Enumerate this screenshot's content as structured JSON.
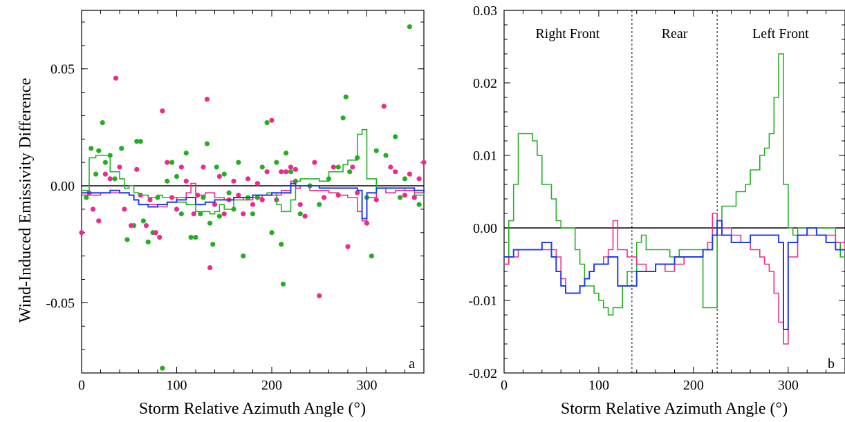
{
  "colors": {
    "green": "#22b022",
    "pink": "#ee2a8a",
    "blue": "#1f3cf0",
    "zero_line": "#000000"
  },
  "chart_data": [
    {
      "panel": "a",
      "type": "scatter",
      "title": "",
      "xlabel": "Storm Relative Azimuth Angle (°)",
      "ylabel": "Wind-Induced Emissivity Difference",
      "xlim": [
        0,
        360
      ],
      "ylim": [
        -0.08,
        0.075
      ],
      "x_ticks": [
        0,
        100,
        200,
        300
      ],
      "y_ticks": [
        0.05,
        0.0,
        -0.05
      ],
      "x_tick_labels": [
        "0",
        "100",
        "200",
        "300"
      ],
      "y_tick_labels": [
        "0.05",
        "0.00",
        "-0.05"
      ],
      "panel_label": "a",
      "series": [
        {
          "color": "green",
          "kind": "points",
          "x": [
            5,
            10,
            15,
            18,
            22,
            25,
            30,
            35,
            42,
            48,
            55,
            58,
            62,
            65,
            70,
            75,
            80,
            85,
            90,
            95,
            100,
            105,
            110,
            115,
            120,
            125,
            128,
            132,
            135,
            138,
            142,
            145,
            150,
            155,
            160,
            165,
            170,
            175,
            180,
            185,
            190,
            195,
            200,
            205,
            210,
            212,
            215,
            220,
            225,
            230,
            240,
            250,
            260,
            270,
            275,
            278,
            282,
            290,
            300,
            305,
            310,
            320,
            330,
            335,
            340,
            345,
            350,
            355
          ],
          "y": [
            -0.005,
            0.016,
            0.005,
            0.015,
            0.027,
            0.01,
            0.013,
            0.003,
            0.016,
            -0.023,
            -0.017,
            0.019,
            0.019,
            -0.015,
            -0.024,
            -0.02,
            -0.005,
            -0.078,
            0.002,
            0.01,
            0.004,
            -0.012,
            0.014,
            -0.022,
            -0.022,
            -0.012,
            -0.005,
            0.018,
            -0.016,
            -0.025,
            0.008,
            -0.013,
            0.005,
            -0.003,
            -0.01,
            0.01,
            -0.03,
            -0.005,
            -0.012,
            -0.005,
            0.008,
            0.027,
            -0.02,
            0.01,
            -0.025,
            -0.042,
            0.014,
            0.006,
            0.002,
            -0.012,
            0.0,
            -0.008,
            0.003,
            0.008,
            0.029,
            0.038,
            0.006,
            0.012,
            -0.005,
            -0.03,
            0.015,
            0.013,
            0.021,
            -0.005,
            0.003,
            0.068,
            -0.005,
            -0.008
          ]
        },
        {
          "color": "pink",
          "kind": "points",
          "x": [
            0,
            8,
            12,
            18,
            25,
            30,
            36,
            40,
            45,
            52,
            58,
            62,
            68,
            72,
            78,
            82,
            85,
            90,
            95,
            100,
            105,
            110,
            118,
            122,
            128,
            132,
            135,
            140,
            145,
            150,
            155,
            160,
            165,
            170,
            175,
            180,
            185,
            190,
            195,
            200,
            205,
            210,
            215,
            220,
            225,
            230,
            235,
            245,
            250,
            255,
            265,
            270,
            280,
            285,
            290,
            300,
            310,
            318,
            325,
            330,
            340,
            345,
            350,
            355,
            360
          ],
          "y": [
            -0.02,
            -0.003,
            -0.01,
            -0.015,
            0.005,
            0.003,
            0.046,
            0.008,
            -0.01,
            -0.017,
            0.007,
            -0.004,
            -0.017,
            -0.006,
            -0.02,
            -0.022,
            0.032,
            0.01,
            -0.005,
            -0.01,
            0.008,
            0.002,
            -0.012,
            -0.004,
            0.008,
            0.037,
            -0.035,
            -0.008,
            0.004,
            -0.012,
            -0.006,
            0.002,
            -0.004,
            -0.012,
            0.003,
            -0.008,
            0.001,
            -0.006,
            0.006,
            0.028,
            -0.006,
            0.006,
            0.006,
            0.008,
            0.007,
            -0.008,
            -0.013,
            0.01,
            -0.047,
            -0.005,
            0.008,
            -0.004,
            -0.026,
            0.008,
            -0.003,
            -0.016,
            -0.006,
            0.034,
            0.008,
            0.006,
            -0.004,
            0.005,
            -0.005,
            0.003,
            0.01
          ]
        },
        {
          "color": "green",
          "kind": "step",
          "x": [
            0,
            8,
            12,
            15,
            20,
            30,
            40,
            45,
            50,
            55,
            60,
            65,
            70,
            75,
            80,
            85,
            95,
            100,
            110,
            120,
            130,
            135,
            140,
            145,
            150,
            160,
            170,
            180,
            190,
            195,
            200,
            205,
            210,
            215,
            220,
            225,
            230,
            240,
            250,
            260,
            270,
            275,
            280,
            285,
            290,
            295,
            300,
            310,
            320,
            330,
            340,
            350,
            360
          ],
          "y": [
            -0.002,
            0.012,
            0.012,
            0.013,
            0.013,
            0.006,
            0.003,
            -0.001,
            0.0,
            -0.003,
            -0.004,
            -0.004,
            -0.005,
            -0.005,
            -0.004,
            -0.005,
            -0.005,
            -0.007,
            -0.008,
            -0.011,
            -0.011,
            -0.012,
            -0.011,
            -0.008,
            -0.01,
            -0.006,
            -0.005,
            -0.004,
            -0.004,
            -0.003,
            -0.003,
            -0.008,
            -0.011,
            -0.011,
            -0.006,
            0.002,
            0.003,
            0.003,
            0.002,
            0.006,
            0.006,
            0.009,
            0.011,
            0.011,
            0.022,
            0.024,
            0.003,
            -0.001,
            -0.001,
            -0.001,
            -0.002,
            -0.004,
            -0.003
          ]
        },
        {
          "color": "pink",
          "kind": "step",
          "x": [
            0,
            10,
            20,
            30,
            40,
            50,
            55,
            60,
            70,
            80,
            90,
            100,
            110,
            115,
            120,
            130,
            140,
            150,
            160,
            170,
            180,
            190,
            200,
            210,
            220,
            225,
            230,
            240,
            250,
            260,
            270,
            280,
            290,
            295,
            300,
            310,
            320,
            330,
            340,
            350,
            360
          ],
          "y": [
            -0.004,
            -0.004,
            -0.003,
            -0.003,
            -0.003,
            -0.004,
            -0.006,
            -0.008,
            -0.008,
            -0.009,
            -0.007,
            -0.005,
            -0.003,
            0.001,
            -0.004,
            -0.003,
            -0.005,
            -0.006,
            -0.005,
            -0.006,
            -0.005,
            -0.004,
            -0.004,
            -0.002,
            0.002,
            -0.001,
            0.0,
            -0.002,
            -0.002,
            -0.003,
            -0.004,
            -0.005,
            -0.011,
            -0.015,
            -0.005,
            -0.001,
            -0.003,
            -0.002,
            -0.002,
            -0.003,
            -0.003
          ]
        },
        {
          "color": "blue",
          "kind": "step",
          "x": [
            0,
            10,
            20,
            30,
            40,
            50,
            55,
            60,
            70,
            80,
            90,
            100,
            110,
            120,
            130,
            140,
            150,
            160,
            170,
            180,
            190,
            200,
            210,
            220,
            225,
            230,
            240,
            250,
            260,
            270,
            280,
            290,
            295,
            300,
            310,
            320,
            330,
            340,
            350,
            360
          ],
          "y": [
            -0.003,
            -0.003,
            -0.003,
            -0.002,
            -0.003,
            -0.004,
            -0.006,
            -0.008,
            -0.009,
            -0.008,
            -0.007,
            -0.006,
            -0.005,
            -0.008,
            -0.007,
            -0.006,
            -0.006,
            -0.005,
            -0.005,
            -0.004,
            -0.004,
            -0.003,
            -0.003,
            0.001,
            0.0,
            0.0,
            0.0,
            -0.001,
            -0.001,
            -0.001,
            -0.001,
            -0.002,
            -0.014,
            -0.003,
            -0.001,
            -0.001,
            -0.001,
            -0.001,
            -0.002,
            -0.003
          ]
        }
      ]
    },
    {
      "panel": "b",
      "type": "line",
      "title": "",
      "xlabel": "Storm Relative Azimuth Angle (°)",
      "ylabel": "",
      "xlim": [
        0,
        360
      ],
      "ylim": [
        -0.02,
        0.03
      ],
      "x_ticks": [
        0,
        100,
        200,
        300
      ],
      "y_ticks": [
        -0.02,
        -0.01,
        0.0,
        0.01,
        0.02,
        0.03
      ],
      "x_tick_labels": [
        "0",
        "100",
        "200",
        "300"
      ],
      "y_tick_labels": [
        "-0.02",
        "-0.01",
        "0.00",
        "0.01",
        "0.02",
        "0.03"
      ],
      "dividers": [
        135,
        225
      ],
      "region_labels": [
        {
          "text": "Right Front",
          "x": 67
        },
        {
          "text": "Rear",
          "x": 180
        },
        {
          "text": "Left Front",
          "x": 292
        }
      ],
      "panel_label": "b",
      "series": [
        {
          "color": "green",
          "kind": "step",
          "x": [
            0,
            5,
            10,
            15,
            20,
            25,
            30,
            35,
            40,
            45,
            50,
            55,
            60,
            65,
            70,
            75,
            80,
            85,
            90,
            95,
            100,
            105,
            110,
            115,
            120,
            125,
            130,
            135,
            140,
            145,
            150,
            155,
            160,
            165,
            170,
            175,
            180,
            185,
            190,
            195,
            200,
            205,
            210,
            215,
            220,
            225,
            230,
            235,
            240,
            245,
            250,
            255,
            260,
            265,
            270,
            275,
            280,
            285,
            290,
            295,
            300,
            305,
            310,
            320,
            330,
            340,
            350,
            355,
            360
          ],
          "y": [
            -0.005,
            0.001,
            0.006,
            0.013,
            0.013,
            0.013,
            0.012,
            0.01,
            0.006,
            0.006,
            0.004,
            0.001,
            0.0,
            0.0,
            0.0,
            -0.003,
            -0.005,
            -0.008,
            -0.008,
            -0.009,
            -0.01,
            -0.011,
            -0.012,
            -0.011,
            -0.011,
            -0.008,
            -0.006,
            -0.006,
            -0.002,
            -0.001,
            -0.003,
            -0.003,
            -0.003,
            -0.003,
            -0.003,
            -0.004,
            -0.004,
            -0.003,
            -0.003,
            -0.003,
            -0.003,
            -0.003,
            -0.011,
            -0.011,
            -0.011,
            -0.001,
            0.003,
            0.003,
            0.003,
            0.005,
            0.005,
            0.006,
            0.008,
            0.008,
            0.01,
            0.011,
            0.013,
            0.018,
            0.024,
            0.006,
            0.0,
            -0.001,
            0.0,
            0.0,
            0.0,
            0.0,
            -0.002,
            -0.004,
            -0.004
          ]
        },
        {
          "color": "pink",
          "kind": "step",
          "x": [
            0,
            5,
            10,
            15,
            20,
            30,
            40,
            50,
            55,
            60,
            65,
            70,
            75,
            80,
            85,
            90,
            95,
            100,
            105,
            110,
            115,
            120,
            130,
            140,
            150,
            160,
            170,
            180,
            190,
            200,
            210,
            215,
            220,
            225,
            230,
            240,
            250,
            260,
            270,
            275,
            280,
            285,
            290,
            295,
            300,
            310,
            320,
            330,
            340,
            350,
            360
          ],
          "y": [
            -0.005,
            -0.004,
            -0.004,
            -0.003,
            -0.003,
            -0.003,
            -0.003,
            -0.003,
            -0.004,
            -0.007,
            -0.009,
            -0.009,
            -0.009,
            -0.008,
            -0.007,
            -0.006,
            -0.005,
            -0.005,
            -0.004,
            -0.003,
            0.001,
            -0.003,
            -0.004,
            -0.005,
            -0.006,
            -0.005,
            -0.006,
            -0.005,
            -0.004,
            -0.004,
            -0.003,
            -0.002,
            0.002,
            -0.001,
            0.0,
            -0.001,
            -0.002,
            -0.003,
            -0.004,
            -0.005,
            -0.006,
            -0.009,
            -0.013,
            -0.016,
            -0.004,
            -0.001,
            -0.001,
            -0.001,
            -0.001,
            -0.002,
            -0.003
          ]
        },
        {
          "color": "blue",
          "kind": "step",
          "x": [
            0,
            5,
            10,
            15,
            20,
            30,
            40,
            50,
            55,
            60,
            65,
            70,
            75,
            80,
            85,
            90,
            95,
            100,
            110,
            120,
            130,
            140,
            150,
            160,
            170,
            180,
            190,
            200,
            210,
            220,
            225,
            230,
            240,
            250,
            260,
            270,
            280,
            285,
            290,
            295,
            300,
            310,
            320,
            330,
            340,
            350,
            360
          ],
          "y": [
            -0.004,
            -0.004,
            -0.003,
            -0.003,
            -0.003,
            -0.003,
            -0.002,
            -0.004,
            -0.006,
            -0.008,
            -0.009,
            -0.009,
            -0.009,
            -0.008,
            -0.007,
            -0.006,
            -0.005,
            -0.005,
            -0.004,
            -0.008,
            -0.008,
            -0.006,
            -0.006,
            -0.005,
            -0.005,
            -0.004,
            -0.004,
            -0.004,
            -0.003,
            -0.001,
            0.001,
            -0.001,
            -0.002,
            -0.002,
            -0.001,
            -0.001,
            -0.001,
            -0.001,
            -0.002,
            -0.014,
            -0.002,
            -0.001,
            0.0,
            -0.001,
            -0.002,
            -0.003,
            -0.003
          ]
        }
      ]
    }
  ]
}
